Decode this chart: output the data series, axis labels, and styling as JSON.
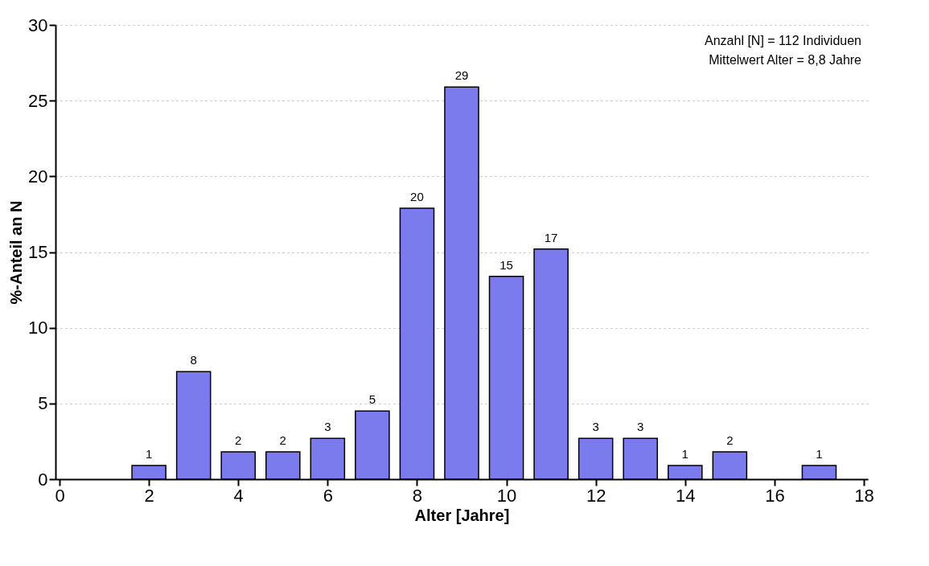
{
  "chart_data": {
    "type": "bar",
    "x": [
      2,
      3,
      4,
      5,
      6,
      7,
      8,
      9,
      10,
      11,
      12,
      13,
      14,
      15,
      17
    ],
    "values": [
      0.9,
      7.1,
      1.8,
      1.8,
      2.7,
      4.5,
      17.9,
      25.9,
      13.4,
      15.2,
      2.7,
      2.7,
      0.9,
      1.8,
      0.9
    ],
    "color": "#7b7bee",
    "xlabel": "Alter [Jahre]",
    "ylabel": "%-Anteil an N",
    "xlim": [
      0,
      18
    ],
    "xticks": [
      0,
      2,
      4,
      6,
      8,
      10,
      12,
      14,
      16,
      18
    ],
    "ylim": [
      0,
      30
    ],
    "yticks": [
      0,
      5,
      10,
      15,
      20,
      25,
      30
    ],
    "grid": "y",
    "annotations": [
      "Anzahl [N] = 112 Individuen",
      "Mittelwert Alter = 8,8 Jahre",
      {
        "text": "1",
        "x": 2,
        "y": 0.9
      },
      {
        "text": "8",
        "x": 3,
        "y": 7.1
      },
      {
        "text": "2",
        "x": 4,
        "y": 1.8
      },
      {
        "text": "2",
        "x": 5,
        "y": 1.8
      },
      {
        "text": "3",
        "x": 6,
        "y": 2.7
      },
      {
        "text": "5",
        "x": 7,
        "y": 4.5
      },
      {
        "text": "20",
        "x": 8,
        "y": 17.9
      },
      {
        "text": "29",
        "x": 9,
        "y": 25.9
      },
      {
        "text": "15",
        "x": 10,
        "y": 13.4
      },
      {
        "text": "17",
        "x": 11,
        "y": 15.2
      },
      {
        "text": "3",
        "x": 12,
        "y": 2.7
      },
      {
        "text": "3",
        "x": 13,
        "y": 2.7
      },
      {
        "text": "1",
        "x": 14,
        "y": 0.9
      },
      {
        "text": "2",
        "x": 15,
        "y": 1.8
      },
      {
        "text": "1",
        "x": 17,
        "y": 0.9
      }
    ]
  }
}
